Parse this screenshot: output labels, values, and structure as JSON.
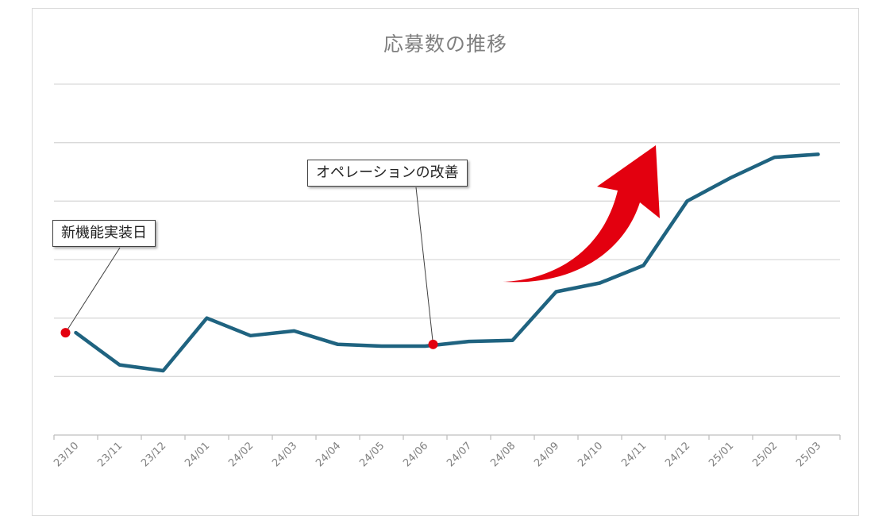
{
  "chart_data": {
    "type": "line",
    "title": "応募数の推移",
    "categories": [
      "23/10",
      "23/11",
      "23/12",
      "24/01",
      "24/02",
      "24/03",
      "24/04",
      "24/05",
      "24/06",
      "24/07",
      "24/08",
      "24/09",
      "24/10",
      "24/11",
      "24/12",
      "25/01",
      "25/02",
      "25/03"
    ],
    "series": [
      {
        "values": [
          1.75,
          1.2,
          1.1,
          2.0,
          1.7,
          1.78,
          1.55,
          1.52,
          1.52,
          1.6,
          1.62,
          2.45,
          2.6,
          2.9,
          4.0,
          4.4,
          4.75,
          4.8
        ]
      }
    ],
    "ylim": [
      0,
      6
    ],
    "grid": true,
    "line_color": "#1f6380",
    "annotations": [
      {
        "text": "新機能実装日",
        "category": "23/10",
        "value": 1.75
      },
      {
        "text": "オペレーションの改善",
        "category": "24/07",
        "value": 1.55
      }
    ],
    "marker_color": "#e3000f",
    "arrow_color": "#e3000f"
  }
}
